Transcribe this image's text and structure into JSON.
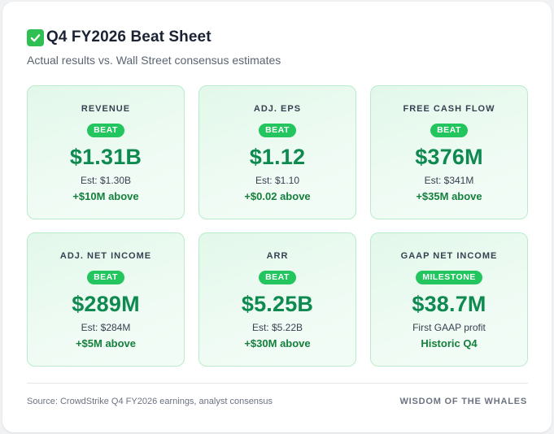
{
  "header": {
    "title": "Q4 FY2026 Beat Sheet",
    "subtitle": "Actual results vs. Wall Street consensus estimates",
    "title_icon": "check-mark-icon"
  },
  "colors": {
    "accent_green": "#22c55e",
    "value_green": "#0e8a50",
    "card_border": "#b9ecca"
  },
  "metrics": [
    {
      "label": "REVENUE",
      "badge": "BEAT",
      "value": "$1.31B",
      "estimate": "Est: $1.30B",
      "delta": "+$10M above"
    },
    {
      "label": "ADJ. EPS",
      "badge": "BEAT",
      "value": "$1.12",
      "estimate": "Est: $1.10",
      "delta": "+$0.02 above"
    },
    {
      "label": "FREE CASH FLOW",
      "badge": "BEAT",
      "value": "$376M",
      "estimate": "Est: $341M",
      "delta": "+$35M above"
    },
    {
      "label": "ADJ. NET INCOME",
      "badge": "BEAT",
      "value": "$289M",
      "estimate": "Est: $284M",
      "delta": "+$5M above"
    },
    {
      "label": "ARR",
      "badge": "BEAT",
      "value": "$5.25B",
      "estimate": "Est: $5.22B",
      "delta": "+$30M above"
    },
    {
      "label": "GAAP NET INCOME",
      "badge": "MILESTONE",
      "value": "$38.7M",
      "estimate": "First GAAP profit",
      "delta": "Historic Q4"
    }
  ],
  "footer": {
    "source": "Source: CrowdStrike Q4 FY2026 earnings, analyst consensus",
    "brand": "WISDOM OF THE WHALES"
  }
}
